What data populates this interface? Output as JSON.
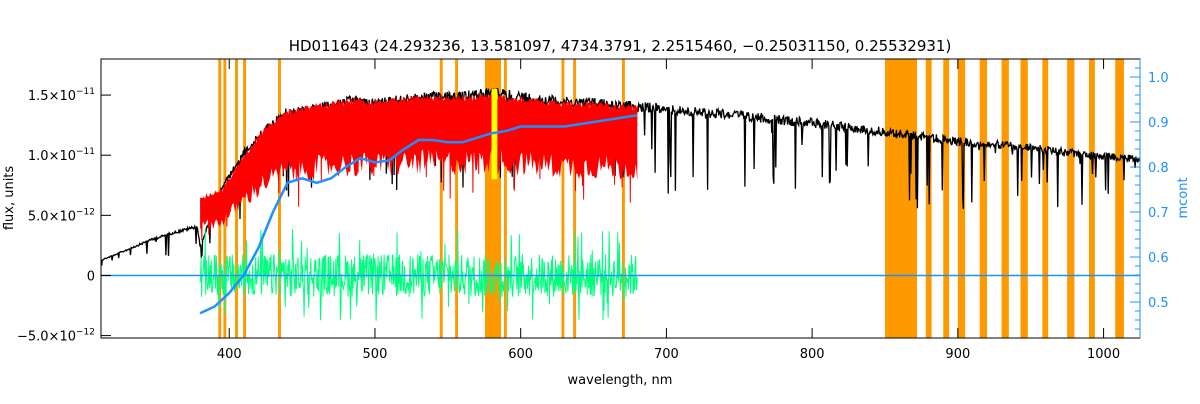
{
  "chart_data": {
    "type": "line",
    "title": "HD011643   (24.293236, 13.581097, 4734.3791, 2.2515460, −0.25031150, 0.25532931)",
    "xlabel": "wavelength, nm",
    "ylabel_left": "flux, units",
    "ylabel_right": "mcont",
    "xlim": [
      312,
      1025
    ],
    "ylim_left": [
      -5.2e-12,
      1.8e-11
    ],
    "ylim_right": [
      0.42,
      1.04
    ],
    "grid": false,
    "x_ticks": [
      {
        "value": 400,
        "label": "400"
      },
      {
        "value": 500,
        "label": "500"
      },
      {
        "value": 600,
        "label": "600"
      },
      {
        "value": 700,
        "label": "700"
      },
      {
        "value": 800,
        "label": "800"
      },
      {
        "value": 900,
        "label": "900"
      },
      {
        "value": 1000,
        "label": "1000"
      }
    ],
    "y_ticks_left": [
      {
        "value": -5e-12,
        "mant": "−5.0×10",
        "exp": "−12"
      },
      {
        "value": 0,
        "mant": "0",
        "exp": ""
      },
      {
        "value": 5e-12,
        "mant": "5.0×10",
        "exp": "−12"
      },
      {
        "value": 1e-11,
        "mant": "1.0×10",
        "exp": "−11"
      },
      {
        "value": 1.5e-11,
        "mant": "1.5×10",
        "exp": "−11"
      }
    ],
    "y_ticks_right": [
      {
        "value": 0.5,
        "label": "0.5"
      },
      {
        "value": 0.6,
        "label": "0.6"
      },
      {
        "value": 0.7,
        "label": "0.7"
      },
      {
        "value": 0.8,
        "label": "0.8"
      },
      {
        "value": 0.9,
        "label": "0.9"
      },
      {
        "value": 1.0,
        "label": "1.0"
      }
    ],
    "masked_bands": [
      [
        392.5,
        394.5
      ],
      [
        396,
        398
      ],
      [
        404,
        406
      ],
      [
        409.5,
        411.5
      ],
      [
        433.5,
        435.5
      ],
      [
        544.5,
        546.5
      ],
      [
        555,
        557
      ],
      [
        575.5,
        586.5
      ],
      [
        588.5,
        590.5
      ],
      [
        628,
        630
      ],
      [
        636,
        638
      ],
      [
        669.5,
        671.5
      ],
      [
        850,
        872
      ],
      [
        878,
        882
      ],
      [
        890,
        894
      ],
      [
        900,
        905
      ],
      [
        915,
        920
      ],
      [
        930,
        935
      ],
      [
        943,
        948
      ],
      [
        958,
        962
      ],
      [
        975,
        980
      ],
      [
        990,
        994
      ],
      [
        1008,
        1014
      ]
    ],
    "colors": {
      "observed": "#000000",
      "model": "#ff0000",
      "residual": "#00ff7f",
      "continuum": "#1e90ff",
      "mask": "#ff9900",
      "highlight": "#ffff00",
      "right_axis": "#1e90ff"
    },
    "series": [
      {
        "id": "observed",
        "x": [
          312,
          330,
          345,
          360,
          378,
          380,
          395,
          410,
          425,
          440,
          455,
          470,
          485,
          500,
          515,
          530,
          545,
          560,
          575,
          590,
          605,
          620,
          635,
          650,
          665,
          680,
          700,
          720,
          740,
          760,
          780,
          800,
          820,
          840,
          850,
          870,
          900,
          930,
          960,
          990,
          1025
        ],
        "y": [
          1.3e-12,
          2.2e-12,
          3e-12,
          3.6e-12,
          4.2e-12,
          2.5e-12,
          7.5e-12,
          1.05e-11,
          1.25e-11,
          1.4e-11,
          1.42e-11,
          1.45e-11,
          1.5e-11,
          1.47e-11,
          1.5e-11,
          1.52e-11,
          1.53e-11,
          1.53e-11,
          1.56e-11,
          1.55e-11,
          1.52e-11,
          1.5e-11,
          1.48e-11,
          1.48e-11,
          1.45e-11,
          1.45e-11,
          1.42e-11,
          1.4e-11,
          1.38e-11,
          1.36e-11,
          1.33e-11,
          1.31e-11,
          1.28e-11,
          1.25e-11,
          1.23e-11,
          1.2e-11,
          1.15e-11,
          1.12e-11,
          1.08e-11,
          1.03e-11,
          1e-11
        ]
      },
      {
        "id": "model",
        "x": [
          380,
          395,
          410,
          425,
          440,
          455,
          470,
          485,
          500,
          515,
          530,
          545,
          560,
          575,
          590,
          605,
          620,
          635,
          650,
          665,
          680
        ],
        "y": [
          6.5e-12,
          7.2e-12,
          1e-11,
          1.25e-11,
          1.38e-11,
          1.42e-11,
          1.45e-11,
          1.48e-11,
          1.46e-11,
          1.48e-11,
          1.5e-11,
          1.5e-11,
          1.5e-11,
          1.52e-11,
          1.5e-11,
          1.48e-11,
          1.46e-11,
          1.45e-11,
          1.45e-11,
          1.43e-11,
          1.42e-11
        ]
      },
      {
        "id": "continuum",
        "axis": "right",
        "x": [
          380,
          390,
          400,
          410,
          420,
          430,
          440,
          450,
          460,
          470,
          480,
          490,
          500,
          510,
          520,
          530,
          540,
          550,
          560,
          570,
          580,
          590,
          600,
          610,
          620,
          630,
          640,
          650,
          660,
          670,
          680
        ],
        "y": [
          0.475,
          0.49,
          0.52,
          0.56,
          0.62,
          0.7,
          0.765,
          0.775,
          0.765,
          0.775,
          0.8,
          0.82,
          0.81,
          0.815,
          0.84,
          0.86,
          0.86,
          0.855,
          0.855,
          0.865,
          0.875,
          0.88,
          0.89,
          0.89,
          0.89,
          0.89,
          0.895,
          0.9,
          0.905,
          0.91,
          0.915
        ]
      }
    ],
    "residual_range": {
      "x": [
        380,
        680
      ],
      "amplitude": 1.8e-12
    },
    "highlight_band": [
      580,
      584
    ]
  }
}
